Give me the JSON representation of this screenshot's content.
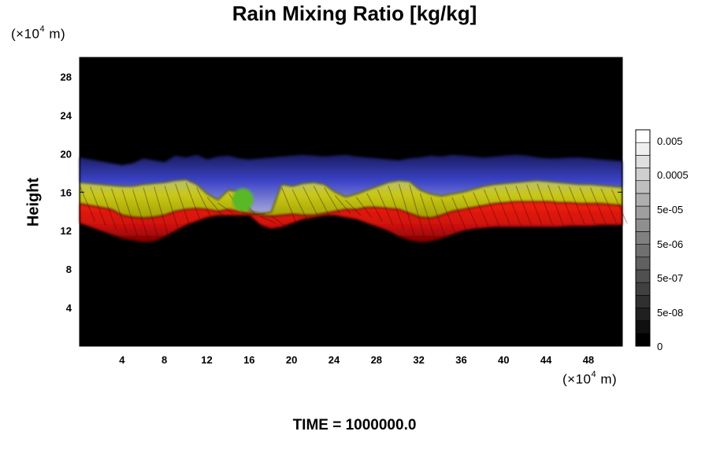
{
  "chart_data": {
    "type": "heatmap",
    "title": "Rain Mixing Ratio [kg/kg]",
    "ylabel": "Height",
    "xlabel": "",
    "x_unit": "(×10⁴ m)",
    "y_unit": "(×10⁴ m)",
    "xlim": [
      0,
      51.2
    ],
    "ylim": [
      0,
      30
    ],
    "x_ticks": [
      4,
      8,
      12,
      16,
      20,
      24,
      28,
      32,
      36,
      40,
      44,
      48
    ],
    "y_ticks": [
      4,
      8,
      12,
      16,
      20,
      24,
      28
    ],
    "colorbar": {
      "labels": [
        "0.005",
        "0.0005",
        "5e-05",
        "5e-06",
        "5e-07",
        "5e-08",
        "0"
      ],
      "scale": "log",
      "levels": 17
    },
    "bands": [
      {
        "name": "blue",
        "color": "#3c44c8",
        "top": [
          19.6,
          19.4,
          19.2,
          19.0,
          18.8,
          19.0,
          19.5,
          19.3,
          19.1,
          19.8,
          19.6,
          19.9,
          19.4,
          19.7,
          19.8,
          19.5,
          19.4,
          19.5,
          19.6,
          19.7,
          19.8,
          19.9,
          19.8,
          19.7,
          19.8,
          19.9,
          19.7,
          19.6,
          19.5,
          19.4,
          19.3,
          19.5,
          19.6,
          19.8,
          19.7,
          19.9,
          19.8,
          19.7,
          19.6,
          19.7,
          19.8,
          19.9,
          19.8,
          19.6,
          19.5,
          19.5,
          19.6,
          19.6,
          19.5,
          19.4,
          19.3,
          19.2
        ]
      },
      {
        "name": "yellow",
        "color": "#c8c818",
        "top": [
          17.0,
          16.9,
          16.8,
          16.7,
          16.6,
          16.6,
          16.8,
          16.9,
          17.0,
          17.2,
          17.3,
          16.8,
          15.8,
          15.2,
          16.2,
          16.0,
          14.0,
          13.8,
          13.9,
          16.8,
          16.6,
          16.9,
          17.0,
          16.8,
          16.0,
          15.5,
          15.8,
          16.2,
          16.6,
          17.0,
          17.2,
          17.1,
          16.2,
          15.8,
          15.6,
          15.8,
          16.0,
          16.3,
          16.6,
          16.8,
          16.9,
          17.0,
          17.1,
          17.2,
          17.1,
          17.0,
          16.9,
          16.8,
          16.8,
          16.7,
          16.6,
          16.5
        ]
      },
      {
        "name": "red",
        "color": "#cc1010",
        "top": [
          14.8,
          14.6,
          14.4,
          14.2,
          13.6,
          13.4,
          13.3,
          13.4,
          13.6,
          14.0,
          14.2,
          14.3,
          14.2,
          14.0,
          14.2,
          14.0,
          13.8,
          13.6,
          13.5,
          13.6,
          13.7,
          13.6,
          13.6,
          13.8,
          14.0,
          14.2,
          14.2,
          14.4,
          14.4,
          14.3,
          14.2,
          13.8,
          13.4,
          13.3,
          13.6,
          14.0,
          14.2,
          14.4,
          14.6,
          14.8,
          14.9,
          15.0,
          15.0,
          15.0,
          15.0,
          14.9,
          14.9,
          14.8,
          14.8,
          14.8,
          14.7,
          14.6
        ],
        "bottom": [
          12.8,
          12.4,
          12.0,
          11.6,
          11.2,
          11.0,
          10.8,
          10.9,
          11.4,
          12.0,
          12.6,
          13.0,
          13.4,
          13.6,
          13.6,
          13.6,
          13.6,
          12.6,
          12.2,
          12.4,
          12.8,
          13.2,
          13.4,
          13.6,
          13.6,
          13.4,
          13.2,
          12.8,
          12.4,
          12.0,
          11.4,
          11.0,
          10.8,
          10.9,
          11.2,
          11.6,
          12.0,
          12.2,
          12.3,
          12.4,
          12.4,
          12.4,
          12.4,
          12.4,
          12.4,
          12.4,
          12.5,
          12.5,
          12.5,
          12.6,
          12.6,
          12.6
        ]
      }
    ],
    "blob": {
      "x": 15.4,
      "y": 15.2,
      "rx": 1.0,
      "ry": 1.2,
      "color": "#58b828"
    }
  },
  "footer": {
    "time_label": "TIME = 1000000.0"
  }
}
